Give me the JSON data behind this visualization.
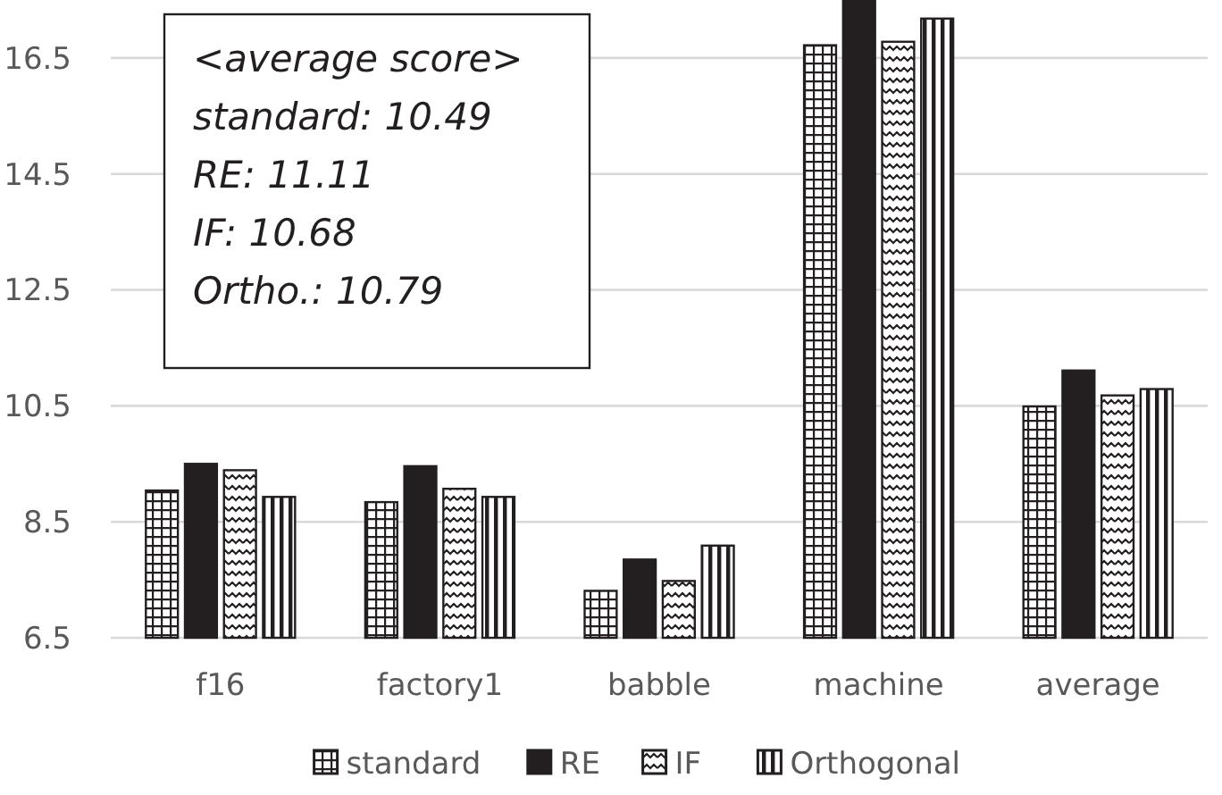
{
  "chart_data": {
    "type": "bar",
    "categories": [
      "f16",
      "factory1",
      "babble",
      "machine",
      "average"
    ],
    "series": [
      {
        "name": "standard",
        "color": "#231f20",
        "values": [
          9.04,
          8.84,
          7.31,
          16.72,
          10.49
        ]
      },
      {
        "name": "RE",
        "color": "#231f20",
        "values": [
          9.5,
          9.46,
          7.85,
          17.5,
          11.11
        ]
      },
      {
        "name": "IF",
        "color": "#231f20",
        "values": [
          9.39,
          9.07,
          7.48,
          16.78,
          10.68
        ]
      },
      {
        "name": "Orthogonal",
        "color": "#231f20",
        "values": [
          8.93,
          8.93,
          8.09,
          17.18,
          10.79
        ]
      }
    ],
    "ylim": [
      6.5,
      17.5
    ],
    "yticks": [
      6.5,
      8.5,
      10.5,
      12.5,
      14.5,
      16.5
    ],
    "grid": "y",
    "legend": "bottom",
    "annotations": [
      "<average score>",
      "standard: 10.49",
      "RE: 11.11",
      "IF: 10.68",
      "Ortho.: 10.79"
    ]
  }
}
